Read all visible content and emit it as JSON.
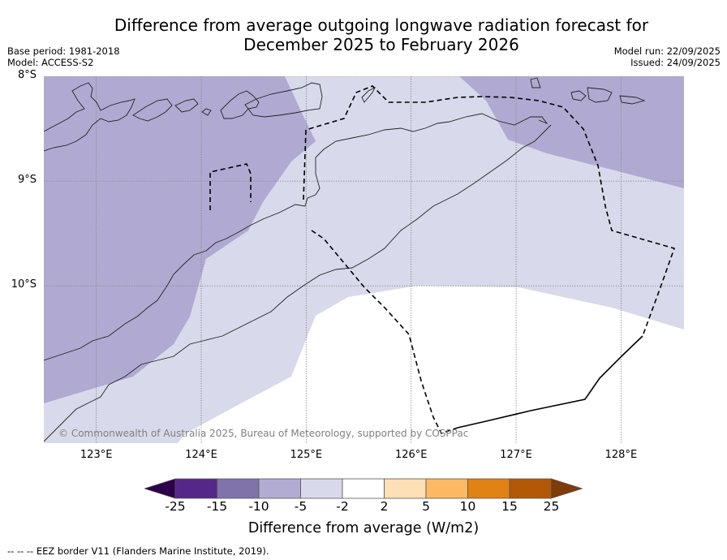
{
  "chart_data": {
    "type": "map",
    "title_line1": "Difference from average outgoing longwave radiation forecast for",
    "title_line2": "December 2025 to February 2026",
    "base_period": "Base period: 1981-2018",
    "model": "Model: ACCESS-S2",
    "model_run": "Model run: 22/09/2025",
    "issued": "Issued: 24/09/2025",
    "extent": {
      "lon_min": 122.5,
      "lon_max": 128.6,
      "lat_max": -8.0,
      "lat_min": -11.5
    },
    "lat_ticks": [
      {
        "value": -8,
        "label": "8°S"
      },
      {
        "value": -9,
        "label": "9°S"
      },
      {
        "value": -10,
        "label": "10°S"
      }
    ],
    "lon_ticks": [
      {
        "value": 123,
        "label": "123°E"
      },
      {
        "value": 124,
        "label": "124°E"
      },
      {
        "value": 125,
        "label": "125°E"
      },
      {
        "value": 126,
        "label": "126°E"
      },
      {
        "value": 127,
        "label": "127°E"
      },
      {
        "value": 128,
        "label": "128°E"
      }
    ],
    "grid": true,
    "regions": [
      {
        "category": "-10 to -5",
        "color": "#b0aad2",
        "description": "north-west and north-east"
      },
      {
        "category": "-5 to -2",
        "color": "#d8d9ea",
        "description": "central band"
      },
      {
        "category": "-2 to 2",
        "color": "#ffffff",
        "description": "south-east"
      }
    ],
    "copyright": "© Commonwealth of Australia 2025, Bureau of Meteorology, supported by COSPPac",
    "colorbar": {
      "label": "Difference from average (W/m2)",
      "ticks": [
        "-25",
        "-15",
        "-10",
        "-5",
        "-2",
        "2",
        "5",
        "10",
        "15",
        "25"
      ],
      "under_color": "#2d004b",
      "over_color": "#7f3b08",
      "colors": [
        "#542788",
        "#8073ac",
        "#b2abd2",
        "#d8daeb",
        "#ffffff",
        "#fee0b6",
        "#fdb863",
        "#e08214",
        "#b35806"
      ],
      "extend": "both"
    },
    "footer": "--  --  -- EEZ border V11 (Flanders Marine Institute, 2019)."
  }
}
